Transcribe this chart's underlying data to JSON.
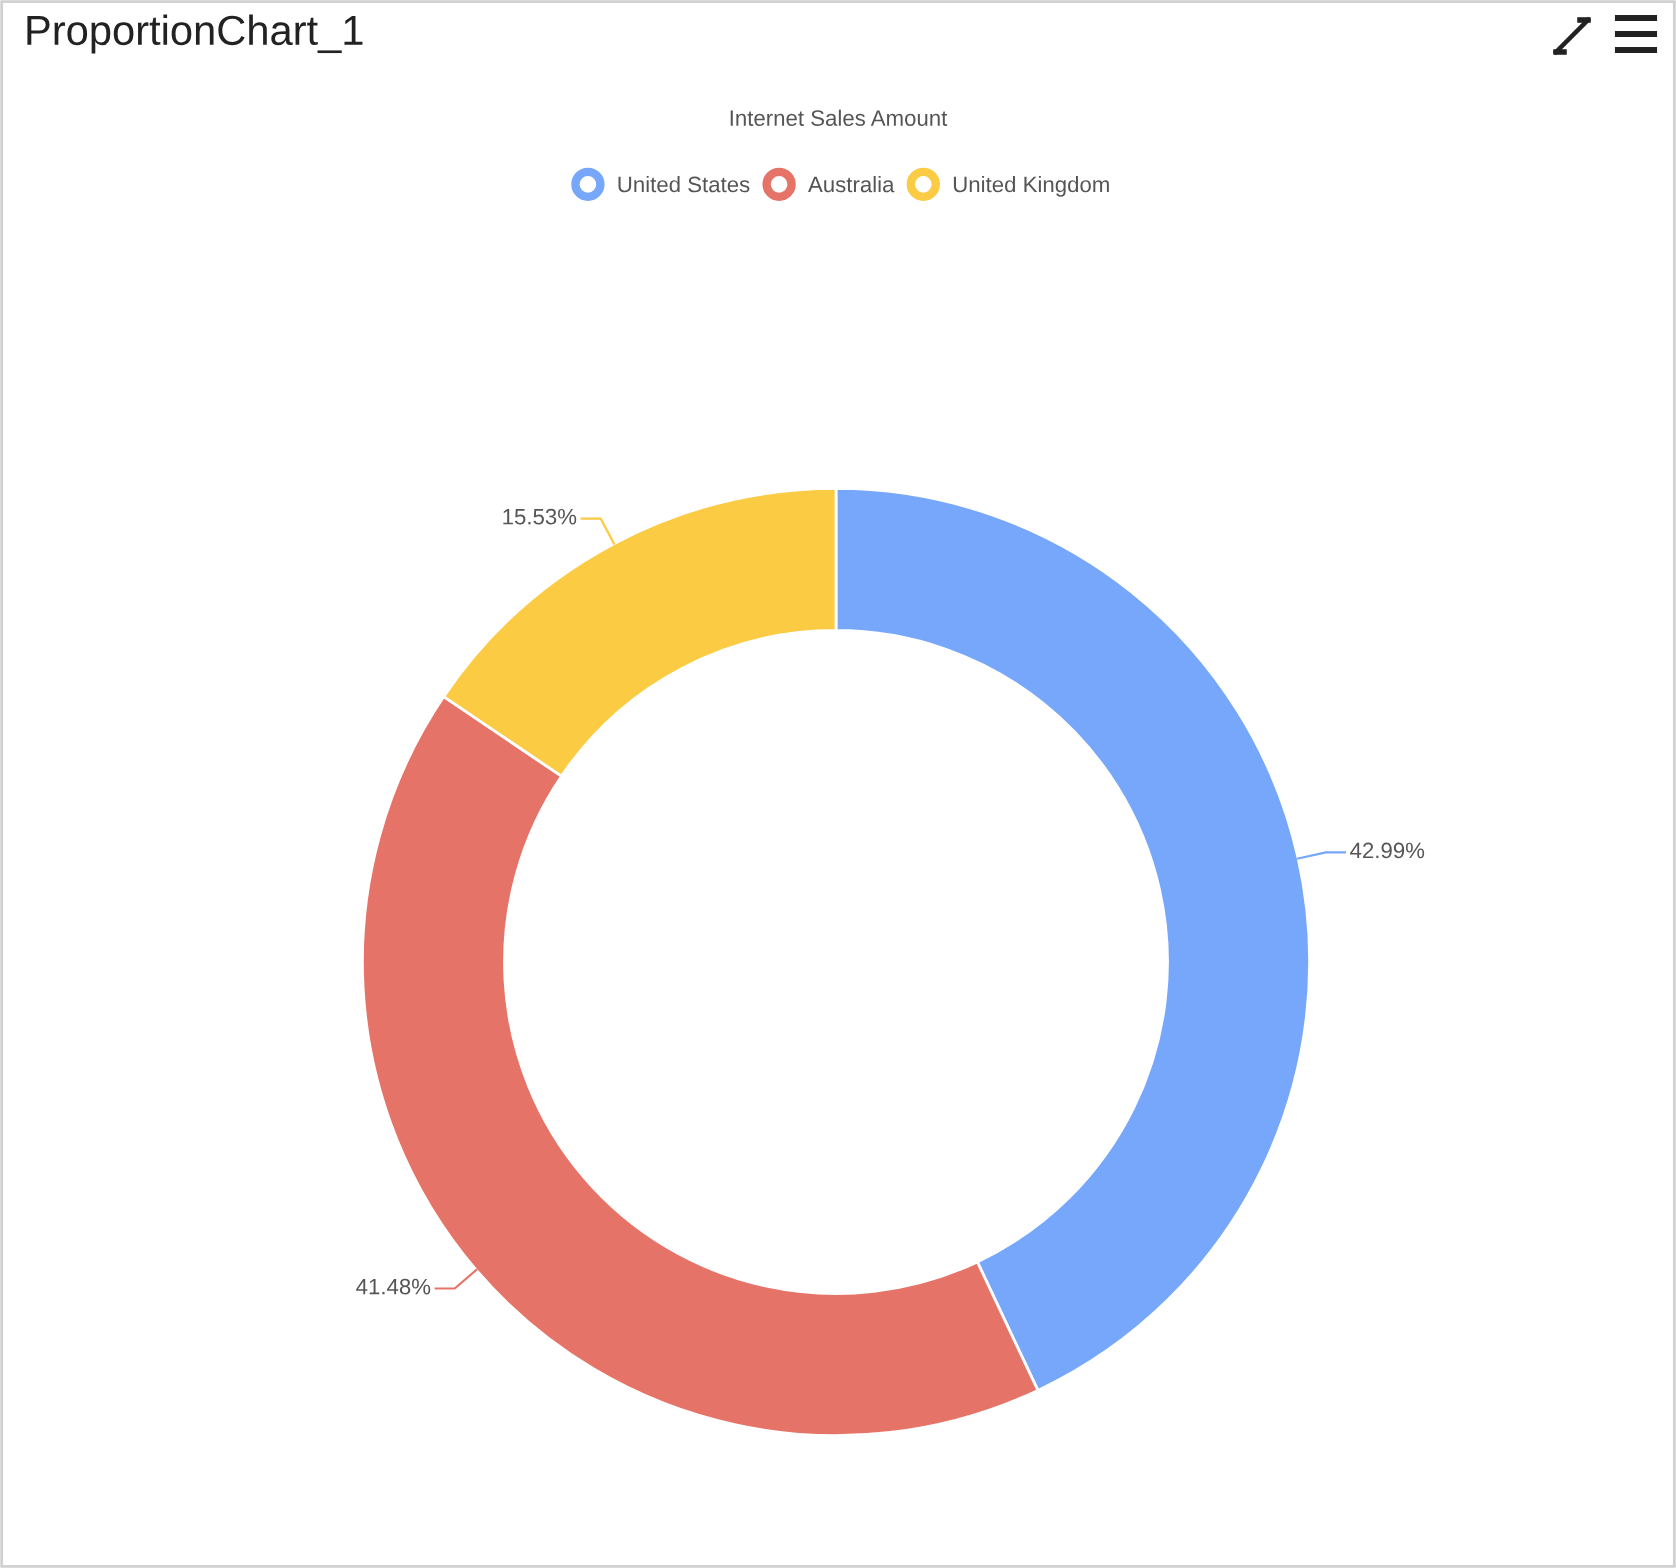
{
  "chart_data": {
    "type": "donut",
    "title": "ProportionChart_1",
    "subtitle": "Internet Sales Amount",
    "categories": [
      "United States",
      "Australia",
      "United Kingdom"
    ],
    "values": [
      42.99,
      41.48,
      15.53
    ],
    "colors": [
      "#76a7fa",
      "#e67367",
      "#fbcb44"
    ],
    "value_labels": [
      "42.99%",
      "41.48%",
      "15.53%"
    ],
    "legend": "top"
  }
}
